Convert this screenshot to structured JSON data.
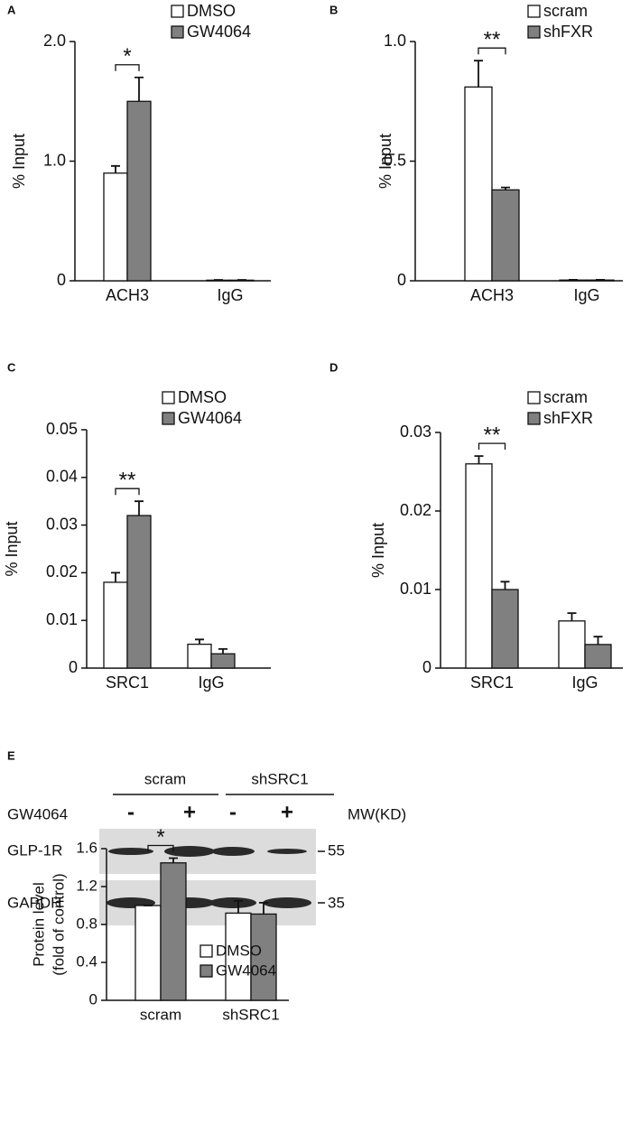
{
  "chart_data": [
    {
      "type": "bar",
      "panel": "A",
      "ylabel": "% Input",
      "categories": [
        "ACH3",
        "IgG"
      ],
      "series": [
        {
          "name": "DMSO",
          "color": "#ffffff",
          "values": [
            0.9,
            0.005
          ],
          "errors": [
            0.06,
            0.002
          ]
        },
        {
          "name": "GW4064",
          "color": "#808080",
          "values": [
            1.5,
            0.005
          ],
          "errors": [
            0.2,
            0.002
          ]
        }
      ],
      "ylim": [
        0,
        2
      ],
      "yticks": [
        0,
        {
          "value": 1,
          "label": "1.0"
        },
        {
          "value": 2,
          "label": "2.0"
        }
      ],
      "significance": "*"
    },
    {
      "type": "bar",
      "panel": "B",
      "ylabel": "% Input",
      "categories": [
        "ACH3",
        "IgG"
      ],
      "series": [
        {
          "name": "scram",
          "color": "#ffffff",
          "values": [
            0.81,
            0.003
          ],
          "errors": [
            0.11,
            0.001
          ]
        },
        {
          "name": "shFXR",
          "color": "#808080",
          "values": [
            0.38,
            0.003
          ],
          "errors": [
            0.01,
            0.001
          ]
        }
      ],
      "ylim": [
        0,
        1
      ],
      "yticks": [
        0,
        0.5,
        {
          "value": 1,
          "label": "1.0"
        }
      ],
      "significance": "**"
    },
    {
      "type": "bar",
      "panel": "C",
      "ylabel": "% Input",
      "categories": [
        "SRC1",
        "IgG"
      ],
      "series": [
        {
          "name": "DMSO",
          "color": "#ffffff",
          "values": [
            0.018,
            0.005
          ],
          "errors": [
            0.002,
            0.001
          ]
        },
        {
          "name": "GW4064",
          "color": "#808080",
          "values": [
            0.032,
            0.003
          ],
          "errors": [
            0.003,
            0.001
          ]
        }
      ],
      "ylim": [
        0,
        0.05
      ],
      "yticks": [
        0,
        0.01,
        0.02,
        0.03,
        0.04,
        0.05
      ],
      "significance": "**"
    },
    {
      "type": "bar",
      "panel": "D",
      "ylabel": "% Input",
      "categories": [
        "SRC1",
        "IgG"
      ],
      "series": [
        {
          "name": "scram",
          "color": "#ffffff",
          "values": [
            0.026,
            0.006
          ],
          "errors": [
            0.001,
            0.001
          ]
        },
        {
          "name": "shFXR",
          "color": "#808080",
          "values": [
            0.01,
            0.003
          ],
          "errors": [
            0.001,
            0.001
          ]
        }
      ],
      "ylim": [
        0,
        0.03
      ],
      "yticks": [
        0,
        0.01,
        0.02,
        0.03
      ],
      "significance": "**"
    },
    {
      "type": "bar",
      "panel": "E",
      "ylabel": [
        "Protein level",
        "(fold of control)"
      ],
      "categories": [
        "scram",
        "shSRC1"
      ],
      "series": [
        {
          "name": "DMSO",
          "color": "#ffffff",
          "values": [
            1.0,
            0.92
          ],
          "errors": [
            0,
            0.13
          ]
        },
        {
          "name": "GW4064",
          "color": "#808080",
          "values": [
            1.45,
            0.91
          ],
          "errors": [
            0.05,
            0.12
          ]
        }
      ],
      "ylim": [
        0,
        1.6
      ],
      "yticks": [
        0,
        0.4,
        0.8,
        1.2,
        1.6
      ],
      "significance": "*"
    }
  ],
  "blot": {
    "groups": [
      "scram",
      "shSRC1"
    ],
    "treatment": "GW4064",
    "lanes": [
      "-",
      "+",
      "-",
      "+"
    ],
    "mw_header": "MW(KD)",
    "rows": [
      {
        "label": "GLP-1R",
        "mw": "55"
      },
      {
        "label": "GAPDH",
        "mw": "35"
      }
    ]
  }
}
